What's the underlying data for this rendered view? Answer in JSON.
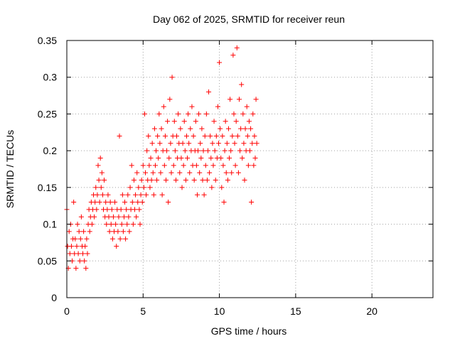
{
  "colors": {
    "series": "#ff0000",
    "axis": "#000000",
    "grid": "#a0a0a0",
    "background": "#ffffff"
  },
  "chart_data": {
    "type": "scatter",
    "title": "Day 062 of 2025, SRMTID for receiver reun",
    "xlabel": "GPS time / hours",
    "ylabel": "SRMTID / TECUs",
    "xlim": [
      0,
      24
    ],
    "ylim": [
      0,
      0.35
    ],
    "xticks": [
      0,
      5,
      10,
      15,
      20
    ],
    "xtick_labels": [
      "0",
      "5",
      "10",
      "15",
      "20"
    ],
    "yticks": [
      0,
      0.05,
      0.1,
      0.15,
      0.2,
      0.25,
      0.3,
      0.35
    ],
    "ytick_labels": [
      "0",
      "0.05",
      "0.1",
      "0.15",
      "0.2",
      "0.25",
      "0.3",
      "0.35"
    ],
    "grid": true,
    "marker": "+",
    "series": [
      {
        "name": "SRMTID",
        "color": "#ff0000",
        "points": [
          [
            0.0,
            0.12
          ],
          [
            0.05,
            0.07
          ],
          [
            0.1,
            0.04
          ],
          [
            0.15,
            0.09
          ],
          [
            0.2,
            0.06
          ],
          [
            0.25,
            0.1
          ],
          [
            0.3,
            0.07
          ],
          [
            0.35,
            0.05
          ],
          [
            0.4,
            0.08
          ],
          [
            0.45,
            0.13
          ],
          [
            0.5,
            0.06
          ],
          [
            0.55,
            0.08
          ],
          [
            0.6,
            0.04
          ],
          [
            0.65,
            0.07
          ],
          [
            0.7,
            0.1
          ],
          [
            0.75,
            0.06
          ],
          [
            0.8,
            0.09
          ],
          [
            0.85,
            0.05
          ],
          [
            0.9,
            0.08
          ],
          [
            0.95,
            0.11
          ],
          [
            1.0,
            0.07
          ],
          [
            1.05,
            0.06
          ],
          [
            1.1,
            0.09
          ],
          [
            1.15,
            0.05
          ],
          [
            1.2,
            0.07
          ],
          [
            1.25,
            0.04
          ],
          [
            1.3,
            0.08
          ],
          [
            1.35,
            0.06
          ],
          [
            1.4,
            0.1
          ],
          [
            1.45,
            0.12
          ],
          [
            1.5,
            0.09
          ],
          [
            1.55,
            0.11
          ],
          [
            1.6,
            0.13
          ],
          [
            1.65,
            0.1
          ],
          [
            1.7,
            0.12
          ],
          [
            1.75,
            0.14
          ],
          [
            1.8,
            0.11
          ],
          [
            1.85,
            0.13
          ],
          [
            1.9,
            0.15
          ],
          [
            1.95,
            0.12
          ],
          [
            2.0,
            0.14
          ],
          [
            2.05,
            0.18
          ],
          [
            2.1,
            0.16
          ],
          [
            2.15,
            0.13
          ],
          [
            2.2,
            0.19
          ],
          [
            2.25,
            0.15
          ],
          [
            2.3,
            0.17
          ],
          [
            2.35,
            0.14
          ],
          [
            2.4,
            0.12
          ],
          [
            2.45,
            0.16
          ],
          [
            2.5,
            0.11
          ],
          [
            2.55,
            0.13
          ],
          [
            2.6,
            0.1
          ],
          [
            2.65,
            0.12
          ],
          [
            2.7,
            0.14
          ],
          [
            2.75,
            0.11
          ],
          [
            2.8,
            0.09
          ],
          [
            2.85,
            0.13
          ],
          [
            2.9,
            0.1
          ],
          [
            2.95,
            0.12
          ],
          [
            3.0,
            0.08
          ],
          [
            3.05,
            0.11
          ],
          [
            3.1,
            0.09
          ],
          [
            3.15,
            0.13
          ],
          [
            3.2,
            0.1
          ],
          [
            3.25,
            0.07
          ],
          [
            3.3,
            0.12
          ],
          [
            3.35,
            0.09
          ],
          [
            3.4,
            0.11
          ],
          [
            3.45,
            0.22
          ],
          [
            3.5,
            0.08
          ],
          [
            3.55,
            0.12
          ],
          [
            3.6,
            0.1
          ],
          [
            3.65,
            0.14
          ],
          [
            3.7,
            0.09
          ],
          [
            3.75,
            0.11
          ],
          [
            3.8,
            0.13
          ],
          [
            3.85,
            0.08
          ],
          [
            3.9,
            0.12
          ],
          [
            3.95,
            0.1
          ],
          [
            4.0,
            0.14
          ],
          [
            4.05,
            0.11
          ],
          [
            4.1,
            0.09
          ],
          [
            4.15,
            0.15
          ],
          [
            4.2,
            0.12
          ],
          [
            4.25,
            0.18
          ],
          [
            4.3,
            0.13
          ],
          [
            4.35,
            0.1
          ],
          [
            4.4,
            0.16
          ],
          [
            4.45,
            0.12
          ],
          [
            4.5,
            0.14
          ],
          [
            4.55,
            0.11
          ],
          [
            4.6,
            0.17
          ],
          [
            4.65,
            0.13
          ],
          [
            4.7,
            0.15
          ],
          [
            4.75,
            0.12
          ],
          [
            4.8,
            0.1
          ],
          [
            4.85,
            0.14
          ],
          [
            4.9,
            0.16
          ],
          [
            4.95,
            0.13
          ],
          [
            5.0,
            0.18
          ],
          [
            5.05,
            0.15
          ],
          [
            5.1,
            0.25
          ],
          [
            5.15,
            0.17
          ],
          [
            5.2,
            0.14
          ],
          [
            5.25,
            0.2
          ],
          [
            5.3,
            0.16
          ],
          [
            5.35,
            0.22
          ],
          [
            5.4,
            0.18
          ],
          [
            5.45,
            0.15
          ],
          [
            5.5,
            0.19
          ],
          [
            5.55,
            0.16
          ],
          [
            5.6,
            0.21
          ],
          [
            5.65,
            0.17
          ],
          [
            5.7,
            0.14
          ],
          [
            5.75,
            0.23
          ],
          [
            5.8,
            0.18
          ],
          [
            5.85,
            0.2
          ],
          [
            5.9,
            0.16
          ],
          [
            5.95,
            0.22
          ],
          [
            6.0,
            0.19
          ],
          [
            6.05,
            0.25
          ],
          [
            6.1,
            0.21
          ],
          [
            6.15,
            0.17
          ],
          [
            6.2,
            0.23
          ],
          [
            6.25,
            0.14
          ],
          [
            6.3,
            0.2
          ],
          [
            6.35,
            0.26
          ],
          [
            6.4,
            0.18
          ],
          [
            6.45,
            0.22
          ],
          [
            6.5,
            0.16
          ],
          [
            6.55,
            0.2
          ],
          [
            6.6,
            0.24
          ],
          [
            6.65,
            0.13
          ],
          [
            6.7,
            0.19
          ],
          [
            6.75,
            0.27
          ],
          [
            6.8,
            0.21
          ],
          [
            6.85,
            0.17
          ],
          [
            6.9,
            0.3
          ],
          [
            6.95,
            0.22
          ],
          [
            7.0,
            0.18
          ],
          [
            7.05,
            0.24
          ],
          [
            7.1,
            0.2
          ],
          [
            7.15,
            0.16
          ],
          [
            7.2,
            0.22
          ],
          [
            7.25,
            0.19
          ],
          [
            7.3,
            0.25
          ],
          [
            7.35,
            0.21
          ],
          [
            7.4,
            0.17
          ],
          [
            7.45,
            0.23
          ],
          [
            7.5,
            0.19
          ],
          [
            7.55,
            0.15
          ],
          [
            7.6,
            0.21
          ],
          [
            7.65,
            0.18
          ],
          [
            7.7,
            0.24
          ],
          [
            7.75,
            0.2
          ],
          [
            7.8,
            0.16
          ],
          [
            7.85,
            0.22
          ],
          [
            7.9,
            0.19
          ],
          [
            7.95,
            0.25
          ],
          [
            8.0,
            0.21
          ],
          [
            8.05,
            0.17
          ],
          [
            8.1,
            0.23
          ],
          [
            8.15,
            0.2
          ],
          [
            8.2,
            0.26
          ],
          [
            8.25,
            0.18
          ],
          [
            8.3,
            0.22
          ],
          [
            8.35,
            0.16
          ],
          [
            8.4,
            0.2
          ],
          [
            8.45,
            0.24
          ],
          [
            8.5,
            0.18
          ],
          [
            8.55,
            0.14
          ],
          [
            8.6,
            0.2
          ],
          [
            8.65,
            0.25
          ],
          [
            8.7,
            0.17
          ],
          [
            8.75,
            0.21
          ],
          [
            8.8,
            0.19
          ],
          [
            8.85,
            0.23
          ],
          [
            8.9,
            0.16
          ],
          [
            8.95,
            0.2
          ],
          [
            9.0,
            0.14
          ],
          [
            9.05,
            0.22
          ],
          [
            9.1,
            0.18
          ],
          [
            9.15,
            0.25
          ],
          [
            9.2,
            0.16
          ],
          [
            9.25,
            0.2
          ],
          [
            9.3,
            0.28
          ],
          [
            9.35,
            0.17
          ],
          [
            9.4,
            0.22
          ],
          [
            9.45,
            0.19
          ],
          [
            9.5,
            0.15
          ],
          [
            9.55,
            0.21
          ],
          [
            9.6,
            0.18
          ],
          [
            9.65,
            0.24
          ],
          [
            9.7,
            0.2
          ],
          [
            9.75,
            0.16
          ],
          [
            9.8,
            0.22
          ],
          [
            9.85,
            0.19
          ],
          [
            9.9,
            0.26
          ],
          [
            9.95,
            0.21
          ],
          [
            10.0,
            0.32
          ],
          [
            10.05,
            0.23
          ],
          [
            10.1,
            0.19
          ],
          [
            10.15,
            0.15
          ],
          [
            10.2,
            0.22
          ],
          [
            10.25,
            0.18
          ],
          [
            10.3,
            0.13
          ],
          [
            10.35,
            0.2
          ],
          [
            10.4,
            0.24
          ],
          [
            10.45,
            0.17
          ],
          [
            10.5,
            0.21
          ],
          [
            10.55,
            0.16
          ],
          [
            10.6,
            0.23
          ],
          [
            10.65,
            0.19
          ],
          [
            10.7,
            0.27
          ],
          [
            10.75,
            0.2
          ],
          [
            10.8,
            0.17
          ],
          [
            10.85,
            0.22
          ],
          [
            10.9,
            0.33
          ],
          [
            10.95,
            0.25
          ],
          [
            11.0,
            0.21
          ],
          [
            11.05,
            0.18
          ],
          [
            11.1,
            0.24
          ],
          [
            11.15,
            0.34
          ],
          [
            11.2,
            0.22
          ],
          [
            11.25,
            0.17
          ],
          [
            11.3,
            0.27
          ],
          [
            11.35,
            0.2
          ],
          [
            11.4,
            0.23
          ],
          [
            11.45,
            0.29
          ],
          [
            11.5,
            0.19
          ],
          [
            11.55,
            0.25
          ],
          [
            11.6,
            0.21
          ],
          [
            11.65,
            0.16
          ],
          [
            11.7,
            0.23
          ],
          [
            11.75,
            0.2
          ],
          [
            11.8,
            0.26
          ],
          [
            11.85,
            0.22
          ],
          [
            11.9,
            0.18
          ],
          [
            11.95,
            0.24
          ],
          [
            12.0,
            0.2
          ],
          [
            12.05,
            0.23
          ],
          [
            12.1,
            0.13
          ],
          [
            12.15,
            0.21
          ],
          [
            12.2,
            0.25
          ],
          [
            12.25,
            0.18
          ],
          [
            12.3,
            0.22
          ],
          [
            12.35,
            0.19
          ],
          [
            12.4,
            0.27
          ],
          [
            12.45,
            0.21
          ]
        ]
      }
    ]
  }
}
